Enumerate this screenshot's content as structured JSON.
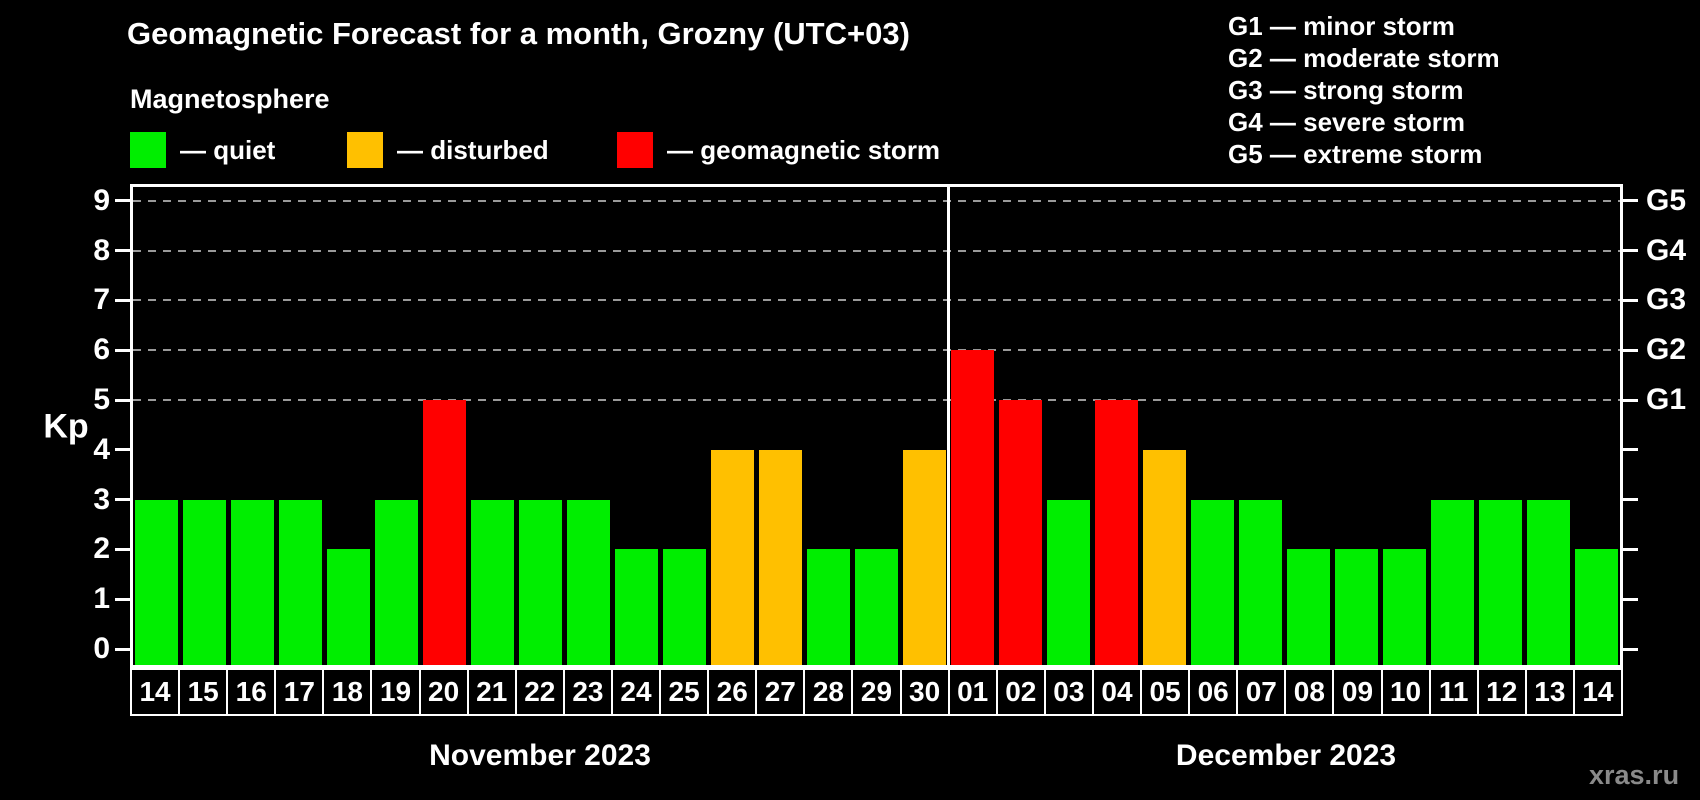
{
  "title": "Geomagnetic Forecast for a month, Grozny (UTC+03)",
  "subtitle": "Magnetosphere",
  "watermark": "xras.ru",
  "colors": {
    "quiet": "#00ee00",
    "disturbed": "#ffc000",
    "storm": "#ff0000",
    "background": "#000000",
    "grid": "#9a9a9a",
    "axis": "#ffffff",
    "watermark_text": "#8a8a8a"
  },
  "color_legend": [
    {
      "status": "quiet",
      "label": "— quiet",
      "color": "#00ee00"
    },
    {
      "status": "disturbed",
      "label": "— disturbed",
      "color": "#ffc000"
    },
    {
      "status": "storm",
      "label": "— geomagnetic storm",
      "color": "#ff0000"
    }
  ],
  "storm_scale_legend": [
    "G1 — minor storm",
    "G2 — moderate storm",
    "G3 — strong storm",
    "G4 — severe storm",
    "G5 — extreme storm"
  ],
  "axis": {
    "y_label": "Kp",
    "y_ticks": [
      "0",
      "1",
      "2",
      "3",
      "4",
      "5",
      "6",
      "7",
      "8",
      "9"
    ],
    "g_labels": [
      {
        "kp": 5,
        "label": "G1"
      },
      {
        "kp": 6,
        "label": "G2"
      },
      {
        "kp": 7,
        "label": "G3"
      },
      {
        "kp": 8,
        "label": "G4"
      },
      {
        "kp": 9,
        "label": "G5"
      }
    ]
  },
  "months": [
    {
      "label": "November 2023",
      "days": [
        "14",
        "15",
        "16",
        "17",
        "18",
        "19",
        "20",
        "21",
        "22",
        "23",
        "24",
        "25",
        "26",
        "27",
        "28",
        "29",
        "30"
      ],
      "kp": [
        3,
        3,
        3,
        3,
        2,
        3,
        5,
        3,
        3,
        3,
        2,
        2,
        4,
        4,
        2,
        2,
        4
      ],
      "status": [
        "quiet",
        "quiet",
        "quiet",
        "quiet",
        "quiet",
        "quiet",
        "storm",
        "quiet",
        "quiet",
        "quiet",
        "quiet",
        "quiet",
        "disturbed",
        "disturbed",
        "quiet",
        "quiet",
        "disturbed"
      ]
    },
    {
      "label": "December 2023",
      "days": [
        "01",
        "02",
        "03",
        "04",
        "05",
        "06",
        "07",
        "08",
        "09",
        "10",
        "11",
        "12",
        "13",
        "14"
      ],
      "kp": [
        6,
        5,
        3,
        5,
        4,
        3,
        3,
        2,
        2,
        2,
        3,
        3,
        3,
        2
      ],
      "status": [
        "storm",
        "storm",
        "quiet",
        "storm",
        "disturbed",
        "quiet",
        "quiet",
        "quiet",
        "quiet",
        "quiet",
        "quiet",
        "quiet",
        "quiet",
        "quiet"
      ]
    }
  ],
  "chart_data": {
    "type": "bar",
    "title": "Geomagnetic Forecast for a month, Grozny (UTC+03)",
    "xlabel": "",
    "ylabel": "Kp",
    "ylim": [
      0,
      9
    ],
    "y_ticks": [
      0,
      1,
      2,
      3,
      4,
      5,
      6,
      7,
      8,
      9
    ],
    "right_axis": {
      "G1": 5,
      "G2": 6,
      "G3": 7,
      "G4": 8,
      "G5": 9
    },
    "grid": "horizontal dashed lines at Kp 5,6,7,8,9 (G1–G5 levels)",
    "legend_position": "top-left",
    "categories": [
      "Nov 14",
      "Nov 15",
      "Nov 16",
      "Nov 17",
      "Nov 18",
      "Nov 19",
      "Nov 20",
      "Nov 21",
      "Nov 22",
      "Nov 23",
      "Nov 24",
      "Nov 25",
      "Nov 26",
      "Nov 27",
      "Nov 28",
      "Nov 29",
      "Nov 30",
      "Dec 01",
      "Dec 02",
      "Dec 03",
      "Dec 04",
      "Dec 05",
      "Dec 06",
      "Dec 07",
      "Dec 08",
      "Dec 09",
      "Dec 10",
      "Dec 11",
      "Dec 12",
      "Dec 13",
      "Dec 14"
    ],
    "values": [
      3,
      3,
      3,
      3,
      2,
      3,
      5,
      3,
      3,
      3,
      2,
      2,
      4,
      4,
      2,
      2,
      4,
      6,
      5,
      3,
      5,
      4,
      3,
      3,
      2,
      2,
      2,
      3,
      3,
      3,
      2
    ],
    "color_rule": "kp<=3 green (quiet), kp=4 orange (disturbed), kp>=5 red (geomagnetic storm)"
  }
}
